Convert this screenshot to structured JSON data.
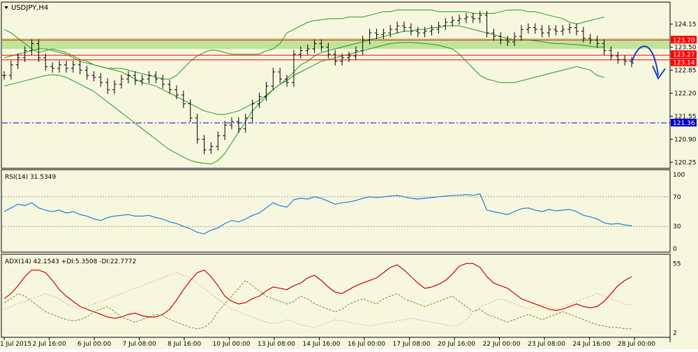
{
  "chart_data": [
    {
      "type": "candlestick",
      "title": "USDJPY,H4",
      "symbol": "USDJPY",
      "timeframe": "H4",
      "ylim": [
        120.1,
        124.75
      ],
      "y_ticks": [
        "124.15",
        "123.50",
        "122.85",
        "122.20",
        "121.55",
        "120.90",
        "120.25"
      ],
      "x_tick_labels": [
        "1 Jul 2015",
        "2 Jul 16:00",
        "6 Jul 00:00",
        "7 Jul 08:00",
        "8 Jul 16:00",
        "10 Jul 00:00",
        "13 Jul 08:00",
        "14 Jul 16:00",
        "16 Jul 00:00",
        "17 Jul 08:00",
        "20 Jul 16:00",
        "22 Jul 00:00",
        "23 Jul 08:00",
        "24 Jul 16:00",
        "28 Jul 00:00"
      ],
      "close": [
        122.7,
        123.0,
        123.2,
        123.4,
        123.6,
        123.2,
        122.95,
        122.9,
        123.0,
        122.9,
        123.0,
        122.85,
        122.7,
        122.65,
        122.5,
        122.3,
        122.45,
        122.6,
        122.7,
        122.55,
        122.6,
        122.7,
        122.6,
        122.45,
        122.3,
        122.15,
        121.9,
        121.5,
        120.9,
        120.6,
        120.7,
        121.0,
        121.3,
        121.4,
        121.2,
        121.5,
        121.9,
        122.1,
        122.4,
        122.8,
        122.6,
        122.5,
        123.3,
        123.4,
        123.45,
        123.6,
        123.5,
        123.3,
        123.1,
        123.2,
        123.25,
        123.4,
        123.7,
        123.9,
        123.85,
        123.9,
        124.0,
        124.1,
        124.05,
        123.95,
        123.9,
        123.95,
        124.0,
        124.1,
        124.2,
        124.25,
        124.3,
        124.35,
        124.3,
        124.4,
        123.9,
        123.8,
        123.7,
        123.65,
        123.8,
        124.0,
        124.05,
        124.0,
        123.9,
        124.0,
        123.95,
        124.0,
        124.05,
        123.95,
        123.75,
        123.7,
        123.6,
        123.4,
        123.25,
        123.15,
        123.1,
        123.05
      ],
      "bollinger": {
        "upper": [
          124.0,
          123.9,
          123.75,
          123.6,
          123.45,
          123.35,
          123.4,
          123.45,
          123.4,
          123.35,
          123.25,
          123.15,
          123.1,
          123.0,
          122.95,
          122.9,
          122.9,
          122.9,
          122.85,
          122.8,
          122.75,
          122.7,
          122.65,
          122.6,
          122.6,
          122.7,
          122.9,
          123.1,
          123.25,
          123.35,
          123.42,
          123.4,
          123.35,
          123.3,
          123.3,
          123.3,
          123.3,
          123.3,
          123.4,
          123.45,
          123.6,
          123.9,
          124.0,
          124.1,
          124.2,
          124.25,
          124.27,
          124.3,
          124.3,
          124.3,
          124.35,
          124.35,
          124.35,
          124.4,
          124.45,
          124.5,
          124.5,
          124.55,
          124.55,
          124.55,
          124.55,
          124.55,
          124.55,
          124.5,
          124.5,
          124.5,
          124.5,
          124.5,
          124.45,
          124.45,
          124.45,
          124.45,
          124.5,
          124.55,
          124.55,
          124.55,
          124.5,
          124.5,
          124.45,
          124.4,
          124.35,
          124.3,
          124.2,
          124.15,
          124.2,
          124.25,
          124.3,
          124.35
        ],
        "middle": [
          123.2,
          123.25,
          123.3,
          123.35,
          123.4,
          123.45,
          123.45,
          123.4,
          123.35,
          123.3,
          123.2,
          123.1,
          123.05,
          123.0,
          122.95,
          122.9,
          122.85,
          122.8,
          122.7,
          122.6,
          122.5,
          122.45,
          122.4,
          122.3,
          122.2,
          122.1,
          122.0,
          121.9,
          121.8,
          121.7,
          121.65,
          121.6,
          121.6,
          121.65,
          121.7,
          121.8,
          121.9,
          122.0,
          122.15,
          122.3,
          122.45,
          122.6,
          122.8,
          123.0,
          123.1,
          123.25,
          123.35,
          123.4,
          123.45,
          123.5,
          123.55,
          123.6,
          123.65,
          123.7,
          123.75,
          123.8,
          123.85,
          123.9,
          123.95,
          123.95,
          124.0,
          124.0,
          124.05,
          124.05,
          124.1,
          124.1,
          124.1,
          124.05,
          124.0,
          123.95,
          123.9,
          123.85,
          123.8,
          123.75,
          123.7,
          123.7,
          123.7,
          123.68,
          123.65,
          123.62,
          123.6,
          123.6,
          123.58,
          123.57,
          123.55,
          123.52,
          123.5,
          123.5
        ],
        "lower": [
          122.4,
          122.45,
          122.5,
          122.55,
          122.6,
          122.65,
          122.7,
          122.72,
          122.7,
          122.65,
          122.55,
          122.45,
          122.35,
          122.25,
          122.1,
          121.95,
          121.8,
          121.65,
          121.5,
          121.35,
          121.2,
          121.05,
          120.9,
          120.75,
          120.6,
          120.5,
          120.4,
          120.3,
          120.25,
          120.22,
          120.2,
          120.3,
          120.5,
          120.8,
          121.1,
          121.4,
          121.7,
          121.9,
          122.1,
          122.3,
          122.45,
          122.55,
          122.7,
          122.8,
          122.9,
          123.0,
          123.1,
          123.15,
          123.2,
          123.25,
          123.3,
          123.35,
          123.4,
          123.45,
          123.5,
          123.55,
          123.6,
          123.62,
          123.63,
          123.63,
          123.62,
          123.6,
          123.58,
          123.55,
          123.5,
          123.45,
          123.3,
          123.1,
          122.9,
          122.7,
          122.6,
          122.55,
          122.5,
          122.5,
          122.5,
          122.55,
          122.6,
          122.65,
          122.7,
          122.75,
          122.8,
          122.85,
          122.9,
          122.95,
          122.9,
          122.85,
          122.7,
          122.65
        ]
      },
      "horizontal_lines": [
        {
          "value": 123.7,
          "label": "123.70",
          "color": "#ff0000",
          "style": "solid"
        },
        {
          "value": 123.27,
          "label": "123.27",
          "color": "#ff0000",
          "style": "solid"
        },
        {
          "value": 123.14,
          "label": "123.14",
          "color": "#ff0000",
          "style": "solid"
        },
        {
          "value": 121.36,
          "label": "121.36",
          "color": "#0000cc",
          "style": "dashdot"
        }
      ],
      "support_zone": {
        "from": 123.45,
        "to": 123.75,
        "color": "#7acc44"
      },
      "forecast_arrow": {
        "color": "#1a3fc4",
        "direction": "down"
      },
      "colors": {
        "candle": "#000000",
        "bollinger": "#1f9a1f"
      }
    },
    {
      "type": "line",
      "title": "RSI(14) 31.5349",
      "indicator": "RSI(14)",
      "current_value": 31.5349,
      "ylim": [
        0,
        100
      ],
      "y_ticks": [
        "100",
        "70",
        "30",
        "0"
      ],
      "levels": [
        70,
        30
      ],
      "series": [
        {
          "name": "RSI(14)",
          "color": "#1e7be0",
          "values": [
            50,
            55,
            60,
            58,
            62,
            55,
            52,
            50,
            52,
            48,
            50,
            46,
            44,
            40,
            38,
            42,
            44,
            45,
            46,
            44,
            44,
            45,
            42,
            40,
            36,
            34,
            30,
            27,
            22,
            20,
            25,
            28,
            34,
            38,
            36,
            40,
            45,
            48,
            55,
            62,
            58,
            56,
            66,
            68,
            67,
            70,
            68,
            64,
            60,
            62,
            63,
            65,
            68,
            70,
            69,
            70,
            71,
            72,
            70,
            68,
            67,
            68,
            69,
            70,
            71,
            72,
            72,
            73,
            72,
            74,
            52,
            50,
            48,
            46,
            50,
            54,
            55,
            52,
            50,
            53,
            51,
            52,
            53,
            50,
            45,
            43,
            40,
            35,
            33,
            34,
            32,
            31
          ]
        }
      ]
    },
    {
      "type": "line",
      "title": "ADX(14) 42.1543 +DI:5.3508 -DI:22.7772",
      "ylim": [
        0,
        60
      ],
      "y_ticks": [
        "55",
        "2"
      ],
      "series": [
        {
          "name": "ADX(14)",
          "color": "#cc0000",
          "values": [
            28,
            32,
            38,
            45,
            50,
            50,
            48,
            42,
            35,
            30,
            26,
            22,
            20,
            18,
            16,
            14,
            13,
            14,
            16,
            17,
            15,
            14,
            14,
            16,
            20,
            27,
            35,
            42,
            48,
            50,
            45,
            38,
            30,
            26,
            24,
            25,
            28,
            30,
            34,
            37,
            36,
            35,
            38,
            40,
            44,
            46,
            42,
            37,
            33,
            32,
            35,
            38,
            40,
            42,
            44,
            48,
            52,
            54,
            50,
            45,
            40,
            36,
            37,
            39,
            42,
            47,
            53,
            55,
            55,
            52,
            45,
            40,
            38,
            36,
            32,
            28,
            26,
            24,
            22,
            20,
            19,
            20,
            22,
            24,
            22,
            21,
            22,
            26,
            32,
            38,
            42,
            45
          ]
        },
        {
          "name": "+DI",
          "color": "#7a8a1a",
          "values": [
            25,
            28,
            32,
            30,
            26,
            22,
            18,
            16,
            14,
            12,
            11,
            12,
            14,
            18,
            20,
            22,
            18,
            14,
            12,
            10,
            12,
            14,
            16,
            15,
            12,
            10,
            8,
            6,
            5,
            6,
            10,
            18,
            24,
            30,
            36,
            42,
            38,
            34,
            30,
            28,
            26,
            24,
            26,
            30,
            28,
            24,
            22,
            20,
            18,
            20,
            24,
            26,
            28,
            26,
            24,
            28,
            30,
            32,
            28,
            26,
            24,
            22,
            24,
            26,
            28,
            30,
            26,
            22,
            18,
            20,
            16,
            14,
            12,
            10,
            12,
            14,
            16,
            14,
            12,
            14,
            16,
            18,
            16,
            14,
            12,
            10,
            8,
            7,
            6,
            6,
            5,
            5
          ]
        },
        {
          "name": "-DI",
          "color": "#c8c89a",
          "values": [
            20,
            22,
            24,
            26,
            28,
            30,
            32,
            30,
            28,
            24,
            22,
            20,
            22,
            24,
            26,
            28,
            30,
            32,
            34,
            36,
            38,
            40,
            42,
            44,
            46,
            48,
            46,
            44,
            40,
            36,
            32,
            28,
            24,
            20,
            18,
            16,
            14,
            12,
            10,
            9,
            10,
            12,
            10,
            8,
            7,
            6,
            8,
            10,
            12,
            11,
            10,
            9,
            8,
            7,
            8,
            9,
            10,
            11,
            12,
            13,
            12,
            11,
            10,
            9,
            8,
            7,
            8,
            12,
            18,
            22,
            24,
            26,
            28,
            26,
            24,
            22,
            20,
            22,
            24,
            22,
            20,
            22,
            24,
            26,
            28,
            30,
            32,
            30,
            28,
            26,
            24,
            23
          ]
        }
      ]
    }
  ]
}
